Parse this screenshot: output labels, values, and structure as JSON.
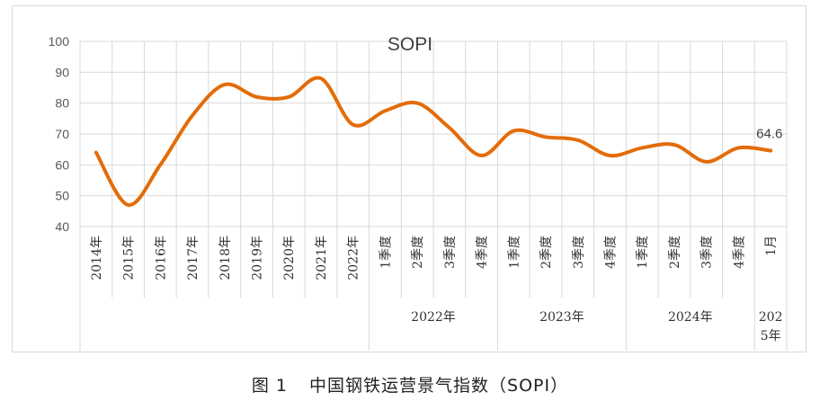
{
  "chart_data": {
    "type": "line",
    "title": "SOPI",
    "ylim": [
      40,
      100
    ],
    "yticks": [
      40,
      50,
      60,
      70,
      80,
      90,
      100
    ],
    "grid": true,
    "line_color": "#E36C0A",
    "categories": [
      "2014年",
      "2015年",
      "2016年",
      "2017年",
      "2018年",
      "2019年",
      "2020年",
      "2021年",
      "2022年",
      "1季度",
      "2季度",
      "3季度",
      "4季度",
      "1季度",
      "2季度",
      "3季度",
      "4季度",
      "1季度",
      "2季度",
      "3季度",
      "4季度",
      "1月"
    ],
    "groups": [
      {
        "label": "2022年",
        "start": 9,
        "end": 12
      },
      {
        "label": "2023年",
        "start": 13,
        "end": 16
      },
      {
        "label": "2024年",
        "start": 17,
        "end": 20
      },
      {
        "label": "2025年",
        "start": 21,
        "end": 21
      }
    ],
    "series": [
      {
        "values": [
          64,
          47,
          60,
          76,
          86,
          82,
          82,
          88,
          73,
          77.5,
          80,
          72,
          63,
          71,
          69,
          68,
          63,
          65.5,
          66.5,
          61,
          65.5,
          64.6
        ]
      }
    ],
    "data_label": {
      "index": 21,
      "text": "64.6"
    }
  },
  "caption": {
    "figure_num": "图 1",
    "text": "中国钢铁运营景气指数（SOPI）"
  }
}
